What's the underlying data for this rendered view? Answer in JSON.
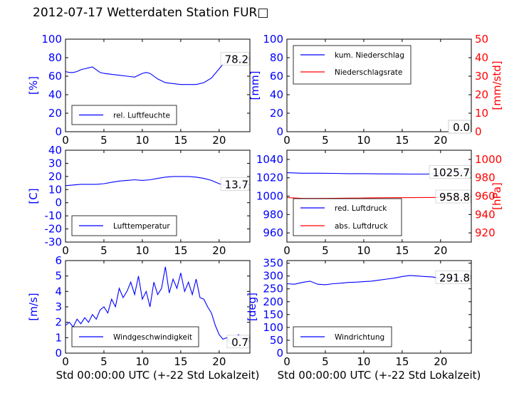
{
  "title": "2012-07-17 Wetterdaten Station FUR□",
  "colors": {
    "primary": "#0000ff",
    "secondary": "#ff0000",
    "axis": "#000000"
  },
  "xticks": [
    0,
    5,
    10,
    15,
    20
  ],
  "xlabel": "Std 00:00:00 UTC (+-22 Std Lokalzeit)",
  "chart_data": [
    {
      "id": "humidity",
      "type": "line",
      "xlim": [
        0,
        24
      ],
      "ylim": [
        0,
        100
      ],
      "yticks": [
        0,
        20,
        40,
        60,
        80,
        100
      ],
      "ylabel": "[%]",
      "xlabel": "",
      "legend_position": "lower-left",
      "annotation": "78.2",
      "series": [
        {
          "name": "rel. Luftfeuchte",
          "color": "#0000ff",
          "x": [
            0,
            0.5,
            1,
            1.5,
            2,
            2.5,
            3,
            3.5,
            4,
            4.5,
            5,
            6,
            7,
            8,
            9,
            10,
            10.5,
            11,
            12,
            13,
            14,
            15,
            16,
            17,
            18,
            19,
            20,
            20.5,
            21,
            21.5,
            22,
            23,
            24
          ],
          "y": [
            65,
            64,
            64,
            65,
            67,
            68,
            69,
            70,
            67,
            64,
            63,
            62,
            61,
            60,
            59,
            63,
            64,
            63,
            57,
            53,
            52,
            51,
            51,
            51,
            53,
            58,
            68,
            73,
            75,
            77,
            78,
            77.5,
            78.2
          ]
        }
      ]
    },
    {
      "id": "precip",
      "type": "line",
      "xlim": [
        0,
        24
      ],
      "ylim": [
        0,
        100
      ],
      "yticks": [
        0,
        20,
        40,
        60,
        80,
        100
      ],
      "ylabel": "[mm]",
      "y2lim": [
        0,
        50
      ],
      "y2ticks": [
        0,
        10,
        20,
        30,
        40,
        50
      ],
      "y2label": "[mm/std]",
      "xlabel": "",
      "legend_position": "upper-left",
      "annotation": "0.0",
      "annotation2": "0.0",
      "series": [
        {
          "name": "kum. Niederschlag",
          "color": "#0000ff",
          "axis": "left",
          "x": [
            0,
            24
          ],
          "y": [
            0,
            0
          ]
        },
        {
          "name": "Niederschlagsrate",
          "color": "#ff0000",
          "axis": "right",
          "x": [
            0,
            24
          ],
          "y": [
            0,
            0
          ]
        }
      ]
    },
    {
      "id": "temperature",
      "type": "line",
      "xlim": [
        0,
        24
      ],
      "ylim": [
        -30,
        40
      ],
      "yticks": [
        -30,
        -20,
        -10,
        0,
        10,
        20,
        30,
        40
      ],
      "ylabel": "[C]",
      "xlabel": "Std 00:00:00 UTC (+-22 Std Lokalzeit)",
      "legend_position": "lower-left",
      "annotation": "13.7",
      "series": [
        {
          "name": "Lufttemperatur",
          "color": "#0000ff",
          "x": [
            0,
            1,
            2,
            3,
            4,
            5,
            6,
            7,
            8,
            9,
            10,
            11,
            12,
            13,
            14,
            15,
            16,
            17,
            18,
            19,
            20,
            21,
            22,
            23,
            24
          ],
          "y": [
            13,
            13.5,
            14,
            14,
            14,
            14.5,
            15.5,
            16.5,
            17,
            17.5,
            17,
            17.5,
            18.5,
            19.5,
            20,
            20,
            20,
            19.5,
            18.5,
            17,
            14.5,
            13,
            12.5,
            13.5,
            13.7
          ]
        }
      ]
    },
    {
      "id": "pressure",
      "type": "line",
      "xlim": [
        0,
        24
      ],
      "ylim": [
        950,
        1050
      ],
      "yticks": [
        960,
        980,
        1000,
        1020,
        1040
      ],
      "ylabel": "",
      "y2lim": [
        910,
        1010
      ],
      "y2ticks": [
        920,
        940,
        960,
        980,
        1000
      ],
      "y2label": "[hPa]",
      "xlabel": "",
      "legend_position": "lower-left",
      "annotation": "1025.7",
      "annotation2": "958.8",
      "series": [
        {
          "name": "red. Luftdruck",
          "color": "#0000ff",
          "axis": "left",
          "x": [
            0,
            2,
            4,
            6,
            8,
            10,
            12,
            14,
            16,
            18,
            20,
            22,
            24
          ],
          "y": [
            1025.5,
            1025,
            1025,
            1024.8,
            1024.5,
            1024.5,
            1024.3,
            1024.2,
            1024,
            1024,
            1024.5,
            1025.2,
            1025.7
          ]
        },
        {
          "name": "abs. Luftdruck",
          "color": "#ff0000",
          "axis": "right",
          "x": [
            0,
            2,
            4,
            6,
            8,
            10,
            12,
            14,
            16,
            18,
            20,
            22,
            24
          ],
          "y": [
            958.5,
            957.5,
            957.5,
            957.6,
            957.8,
            958,
            958.2,
            958.3,
            958.4,
            958.5,
            958.6,
            958.7,
            958.8
          ]
        }
      ]
    },
    {
      "id": "windspeed",
      "type": "line",
      "xlim": [
        0,
        24
      ],
      "ylim": [
        0,
        6
      ],
      "yticks": [
        0,
        1,
        2,
        3,
        4,
        5,
        6
      ],
      "ylabel": "[m/s]",
      "xlabel": "Std 00:00:00 UTC (+-22 Std Lokalzeit)",
      "legend_position": "lower-left",
      "annotation": "0.7",
      "series": [
        {
          "name": "Windgeschwindigkeit",
          "color": "#0000ff",
          "x": [
            0,
            0.5,
            1,
            1.5,
            2,
            2.5,
            3,
            3.5,
            4,
            4.5,
            5,
            5.5,
            6,
            6.5,
            7,
            7.5,
            8,
            8.5,
            9,
            9.5,
            10,
            10.5,
            11,
            11.5,
            12,
            12.5,
            13,
            13.5,
            14,
            14.5,
            15,
            15.5,
            16,
            16.5,
            17,
            17.5,
            18,
            18.5,
            19,
            19.5,
            20,
            20.5,
            21,
            21.5,
            22,
            22.5,
            23,
            23.5,
            24
          ],
          "y": [
            1.8,
            2.0,
            1.7,
            2.2,
            1.9,
            2.3,
            2.0,
            2.5,
            2.2,
            2.8,
            3.0,
            2.6,
            3.5,
            3.0,
            4.2,
            3.6,
            4.0,
            4.6,
            3.8,
            5.0,
            3.5,
            4.0,
            3.0,
            4.6,
            3.8,
            4.2,
            5.6,
            3.9,
            4.8,
            4.2,
            5.2,
            4.0,
            4.6,
            3.8,
            4.8,
            3.6,
            3.5,
            3.0,
            2.6,
            1.8,
            1.2,
            0.9,
            1.0,
            0.6,
            0.8,
            1.2,
            0.9,
            1.1,
            0.7
          ]
        }
      ]
    },
    {
      "id": "winddir",
      "type": "line",
      "xlim": [
        0,
        24
      ],
      "ylim": [
        0,
        360
      ],
      "yticks": [
        0,
        50,
        100,
        150,
        200,
        250,
        300,
        350
      ],
      "ylabel": "[deg]",
      "xlabel": "Std 00:00:00 UTC (+-22 Std Lokalzeit)",
      "legend_position": "lower-left",
      "annotation": "291.8",
      "series": [
        {
          "name": "Windrichtung",
          "color": "#0000ff",
          "x": [
            0,
            1,
            2,
            3,
            4,
            5,
            6,
            7,
            8,
            9,
            10,
            11,
            12,
            13,
            14,
            15,
            16,
            17,
            18,
            19,
            20,
            21,
            22,
            23,
            24
          ],
          "y": [
            270,
            268,
            275,
            280,
            268,
            266,
            270,
            272,
            275,
            276,
            278,
            280,
            284,
            288,
            292,
            298,
            302,
            300,
            298,
            296,
            290,
            288,
            292,
            294,
            291.8
          ]
        }
      ]
    }
  ]
}
